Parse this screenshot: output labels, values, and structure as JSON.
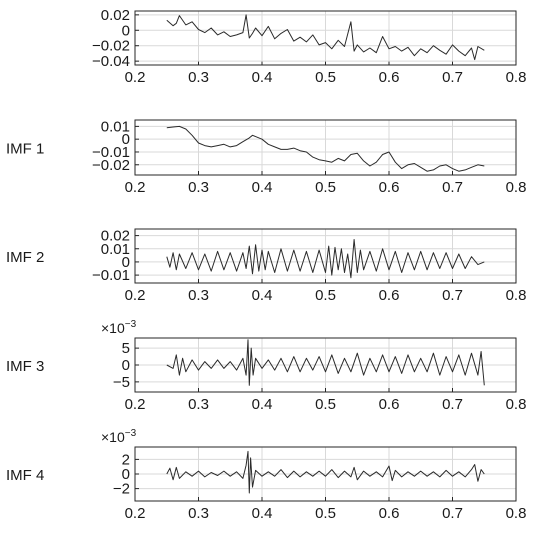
{
  "chart_data": [
    {
      "type": "line",
      "ylabel": "",
      "exponent": "",
      "xlim": [
        0.2,
        0.8
      ],
      "ylim": [
        -0.045,
        0.025
      ],
      "xticks": [
        "0.2",
        "0.3",
        "0.4",
        "0.5",
        "0.6",
        "0.7",
        "0.8"
      ],
      "yticks": [
        0.02,
        0,
        -0.02,
        -0.04
      ],
      "ytick_labels": [
        "0.02",
        "0",
        "−0.02",
        "−0.04"
      ],
      "grid": true,
      "x": [
        0.25,
        0.26,
        0.265,
        0.27,
        0.28,
        0.29,
        0.3,
        0.31,
        0.32,
        0.33,
        0.34,
        0.35,
        0.36,
        0.37,
        0.375,
        0.38,
        0.385,
        0.39,
        0.4,
        0.41,
        0.42,
        0.43,
        0.44,
        0.45,
        0.46,
        0.47,
        0.48,
        0.49,
        0.5,
        0.51,
        0.52,
        0.53,
        0.54,
        0.545,
        0.55,
        0.56,
        0.57,
        0.58,
        0.59,
        0.6,
        0.61,
        0.62,
        0.63,
        0.64,
        0.65,
        0.66,
        0.67,
        0.68,
        0.69,
        0.7,
        0.71,
        0.72,
        0.73,
        0.735,
        0.74,
        0.75
      ],
      "y": [
        0.013,
        0.006,
        0.009,
        0.019,
        0.007,
        0.011,
        0.001,
        -0.003,
        0.003,
        -0.006,
        -0.002,
        -0.008,
        -0.006,
        -0.003,
        0.02,
        -0.01,
        -0.004,
        0.003,
        -0.007,
        0.005,
        -0.011,
        -0.004,
        0.001,
        -0.014,
        -0.009,
        -0.015,
        -0.006,
        -0.019,
        -0.016,
        -0.024,
        -0.013,
        -0.021,
        0.011,
        -0.027,
        -0.019,
        -0.028,
        -0.023,
        -0.029,
        -0.008,
        -0.024,
        -0.021,
        -0.027,
        -0.022,
        -0.033,
        -0.024,
        -0.029,
        -0.02,
        -0.026,
        -0.031,
        -0.019,
        -0.027,
        -0.033,
        -0.023,
        -0.038,
        -0.021,
        -0.026
      ]
    },
    {
      "type": "line",
      "ylabel": "IMF 1",
      "exponent": "",
      "xlim": [
        0.2,
        0.8
      ],
      "ylim": [
        -0.028,
        0.015
      ],
      "xticks": [
        "0.2",
        "0.3",
        "0.4",
        "0.5",
        "0.6",
        "0.7",
        "0.8"
      ],
      "yticks": [
        0.01,
        0,
        -0.01,
        -0.02
      ],
      "ytick_labels": [
        "0.01",
        "0",
        "−0.01",
        "−0.02"
      ],
      "grid": true,
      "x": [
        0.25,
        0.26,
        0.27,
        0.28,
        0.29,
        0.3,
        0.31,
        0.32,
        0.33,
        0.34,
        0.35,
        0.36,
        0.37,
        0.38,
        0.385,
        0.39,
        0.4,
        0.41,
        0.42,
        0.43,
        0.44,
        0.45,
        0.46,
        0.47,
        0.48,
        0.49,
        0.5,
        0.51,
        0.52,
        0.53,
        0.54,
        0.55,
        0.56,
        0.57,
        0.58,
        0.59,
        0.6,
        0.61,
        0.62,
        0.63,
        0.64,
        0.65,
        0.66,
        0.67,
        0.68,
        0.69,
        0.7,
        0.71,
        0.72,
        0.73,
        0.74,
        0.75
      ],
      "y": [
        0.009,
        0.0095,
        0.01,
        0.008,
        0.003,
        -0.003,
        -0.005,
        -0.006,
        -0.005,
        -0.004,
        -0.006,
        -0.005,
        -0.002,
        0.001,
        0.003,
        0.002,
        0.0,
        -0.004,
        -0.006,
        -0.008,
        -0.008,
        -0.007,
        -0.009,
        -0.01,
        -0.014,
        -0.016,
        -0.017,
        -0.018,
        -0.015,
        -0.017,
        -0.012,
        -0.011,
        -0.017,
        -0.021,
        -0.018,
        -0.012,
        -0.01,
        -0.018,
        -0.023,
        -0.02,
        -0.019,
        -0.022,
        -0.025,
        -0.024,
        -0.021,
        -0.02,
        -0.023,
        -0.025,
        -0.024,
        -0.022,
        -0.02,
        -0.021
      ]
    },
    {
      "type": "line",
      "ylabel": "IMF 2",
      "exponent": "",
      "xlim": [
        0.2,
        0.8
      ],
      "ylim": [
        -0.016,
        0.025
      ],
      "xticks": [
        "0.2",
        "0.3",
        "0.4",
        "0.5",
        "0.6",
        "0.7",
        "0.8"
      ],
      "yticks": [
        0.02,
        0.01,
        0,
        -0.01
      ],
      "ytick_labels": [
        "0.02",
        "0.01",
        "0",
        "−0.01"
      ],
      "grid": true,
      "x": [
        0.25,
        0.255,
        0.26,
        0.265,
        0.27,
        0.28,
        0.29,
        0.3,
        0.31,
        0.32,
        0.33,
        0.34,
        0.35,
        0.36,
        0.37,
        0.375,
        0.38,
        0.385,
        0.39,
        0.395,
        0.4,
        0.405,
        0.41,
        0.42,
        0.43,
        0.44,
        0.45,
        0.46,
        0.47,
        0.48,
        0.49,
        0.5,
        0.505,
        0.51,
        0.515,
        0.52,
        0.525,
        0.53,
        0.535,
        0.54,
        0.545,
        0.55,
        0.555,
        0.56,
        0.57,
        0.58,
        0.59,
        0.6,
        0.61,
        0.62,
        0.63,
        0.64,
        0.65,
        0.66,
        0.67,
        0.68,
        0.69,
        0.7,
        0.71,
        0.72,
        0.73,
        0.74,
        0.75
      ],
      "y": [
        0.004,
        -0.004,
        0.007,
        -0.006,
        0.006,
        -0.005,
        0.007,
        -0.006,
        0.006,
        -0.007,
        0.008,
        -0.006,
        0.007,
        -0.007,
        0.007,
        -0.005,
        0.012,
        -0.009,
        0.013,
        -0.007,
        0.009,
        -0.006,
        0.008,
        -0.008,
        0.01,
        -0.007,
        0.009,
        -0.007,
        0.008,
        -0.008,
        0.009,
        -0.008,
        0.012,
        -0.01,
        0.011,
        -0.006,
        0.01,
        -0.008,
        0.006,
        -0.012,
        0.017,
        -0.008,
        0.009,
        -0.006,
        0.008,
        -0.007,
        0.01,
        -0.006,
        0.008,
        -0.008,
        0.007,
        -0.006,
        0.008,
        -0.006,
        0.007,
        -0.005,
        0.007,
        -0.005,
        0.006,
        -0.005,
        0.004,
        -0.002,
        0.0
      ]
    },
    {
      "type": "line",
      "ylabel": "IMF 3",
      "exponent": "×10",
      "exponent_power": "−3",
      "xlim": [
        0.2,
        0.8
      ],
      "ylim": [
        -8,
        8
      ],
      "xticks": [
        "0.2",
        "0.3",
        "0.4",
        "0.5",
        "0.6",
        "0.7",
        "0.8"
      ],
      "yticks": [
        5,
        0,
        -5
      ],
      "ytick_labels": [
        "5",
        "0",
        "−5"
      ],
      "grid": true,
      "x": [
        0.25,
        0.26,
        0.265,
        0.27,
        0.275,
        0.28,
        0.29,
        0.3,
        0.31,
        0.32,
        0.33,
        0.34,
        0.35,
        0.36,
        0.37,
        0.375,
        0.378,
        0.38,
        0.383,
        0.386,
        0.39,
        0.4,
        0.41,
        0.42,
        0.43,
        0.44,
        0.45,
        0.46,
        0.47,
        0.48,
        0.49,
        0.5,
        0.51,
        0.52,
        0.53,
        0.54,
        0.55,
        0.56,
        0.57,
        0.58,
        0.59,
        0.6,
        0.61,
        0.62,
        0.63,
        0.64,
        0.65,
        0.66,
        0.67,
        0.68,
        0.69,
        0.7,
        0.71,
        0.72,
        0.73,
        0.74,
        0.745,
        0.75
      ],
      "y": [
        0,
        -1,
        3,
        -3,
        2,
        -2,
        1.5,
        -1.5,
        1,
        -1,
        1.5,
        -1,
        1,
        -1.5,
        2,
        -3,
        7.5,
        -6,
        5,
        -3,
        2,
        -1,
        1.5,
        -1.5,
        2,
        -2,
        2.5,
        -2,
        2,
        -1.5,
        2.5,
        -2,
        3,
        -2.5,
        2,
        -2,
        3.5,
        -3,
        2,
        -2,
        3,
        -2,
        2.5,
        -2.5,
        3,
        -2,
        2,
        -2,
        3.5,
        -3,
        2.5,
        -2,
        3,
        -3,
        3.5,
        -3,
        4,
        -6
      ]
    },
    {
      "type": "line",
      "ylabel": "IMF 4",
      "exponent": "×10",
      "exponent_power": "−3",
      "xlim": [
        0.2,
        0.8
      ],
      "ylim": [
        -3.7,
        3.7
      ],
      "xticks": [
        "0.2",
        "0.3",
        "0.4",
        "0.5",
        "0.6",
        "0.7",
        "0.8"
      ],
      "yticks": [
        2,
        0,
        -2
      ],
      "ytick_labels": [
        "2",
        "0",
        "−2"
      ],
      "grid": true,
      "x": [
        0.25,
        0.255,
        0.26,
        0.265,
        0.27,
        0.28,
        0.29,
        0.3,
        0.31,
        0.32,
        0.33,
        0.34,
        0.35,
        0.36,
        0.37,
        0.375,
        0.378,
        0.38,
        0.382,
        0.385,
        0.39,
        0.4,
        0.41,
        0.42,
        0.43,
        0.44,
        0.45,
        0.46,
        0.47,
        0.48,
        0.49,
        0.5,
        0.51,
        0.52,
        0.53,
        0.54,
        0.545,
        0.55,
        0.56,
        0.57,
        0.58,
        0.59,
        0.6,
        0.605,
        0.61,
        0.62,
        0.63,
        0.64,
        0.65,
        0.66,
        0.67,
        0.68,
        0.69,
        0.7,
        0.71,
        0.72,
        0.73,
        0.735,
        0.74,
        0.745,
        0.75
      ],
      "y": [
        0,
        0.8,
        -0.8,
        0.9,
        -0.6,
        0.3,
        -0.3,
        0.4,
        -0.4,
        0.2,
        -0.2,
        0.4,
        -0.3,
        0.3,
        -0.6,
        1.2,
        3.1,
        -2.6,
        2.2,
        -1.8,
        0.5,
        -0.3,
        0.3,
        -0.3,
        0.6,
        -0.5,
        0.4,
        -0.4,
        0.3,
        -0.3,
        0.4,
        -0.3,
        0.6,
        -0.5,
        0.4,
        -0.4,
        0.9,
        -0.8,
        0.4,
        -0.3,
        0.3,
        -0.4,
        1.1,
        -0.9,
        0.5,
        -0.4,
        0.3,
        -0.3,
        0.4,
        -0.3,
        0.3,
        -0.4,
        0.5,
        -0.3,
        0.3,
        -0.4,
        0.6,
        1.3,
        -1.0,
        0.6,
        0
      ]
    }
  ]
}
